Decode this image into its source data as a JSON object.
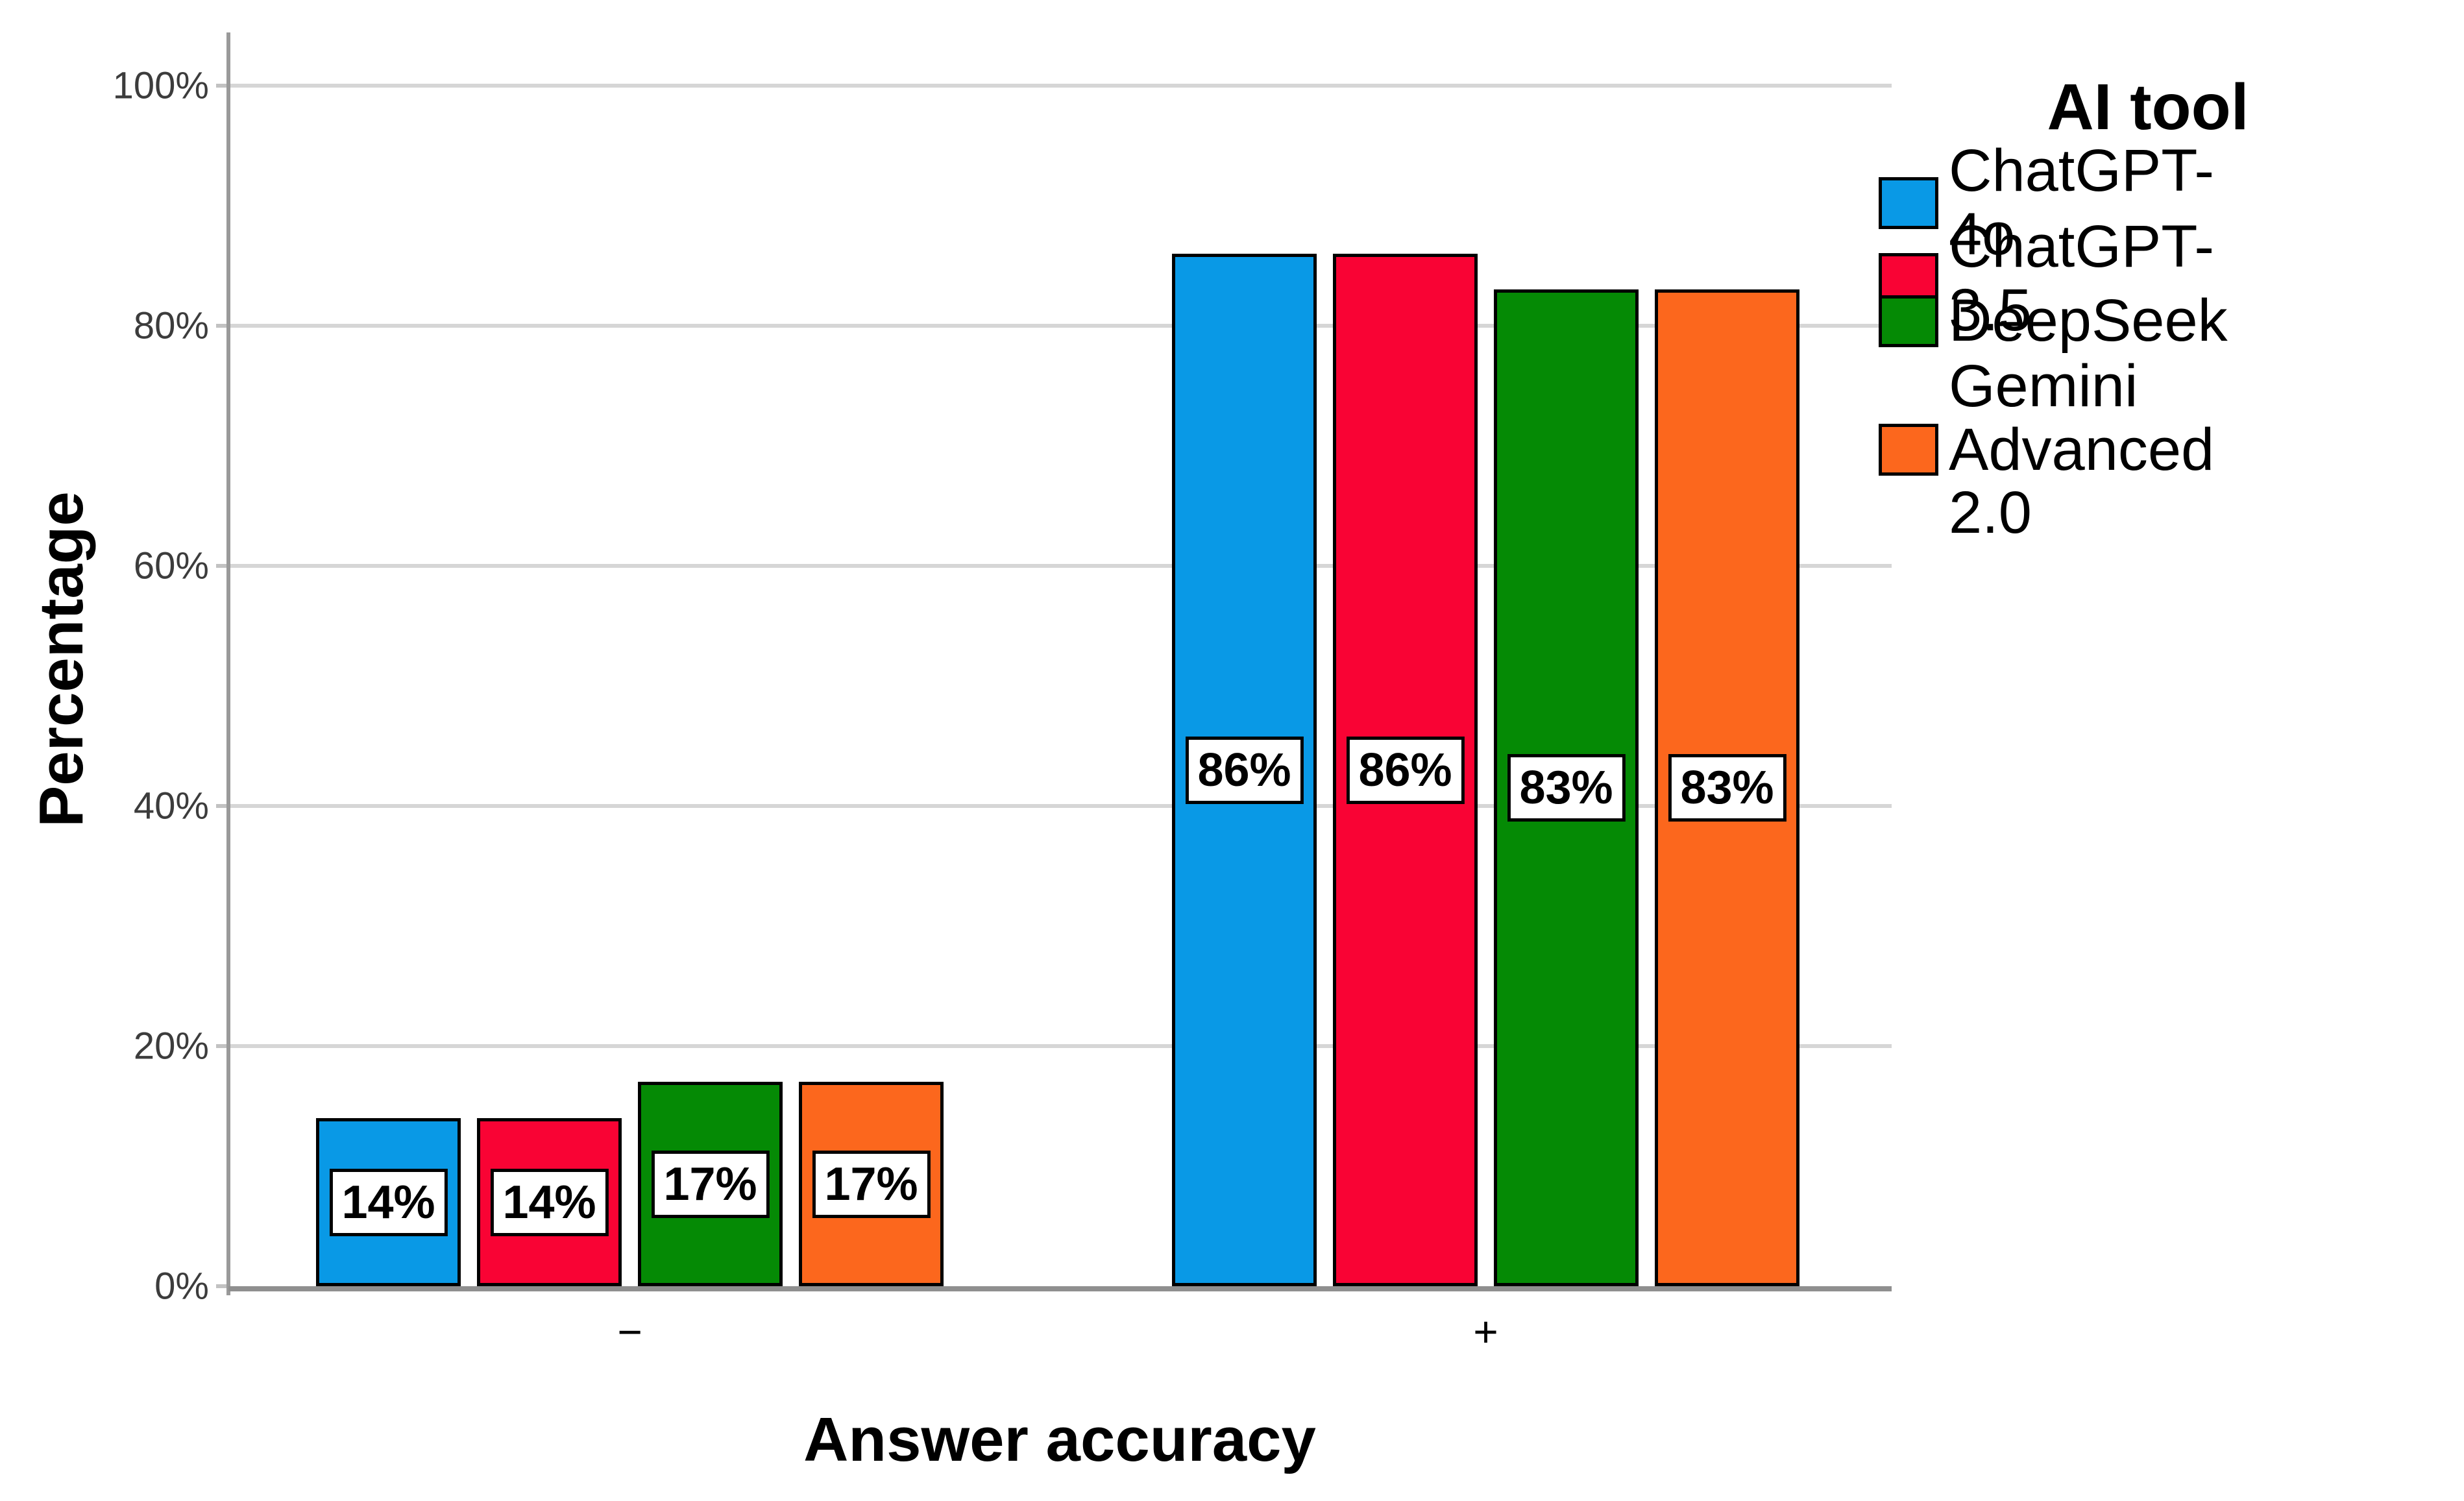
{
  "chart_data": {
    "type": "bar",
    "title": "",
    "xlabel": "Answer accuracy",
    "ylabel": "Percentage",
    "categories": [
      "−",
      "+"
    ],
    "series": [
      {
        "name": "ChatGPT-4o",
        "color": "#0999e6",
        "values": [
          14,
          86
        ]
      },
      {
        "name": "ChatGPT-3.5",
        "color": "#f90334",
        "values": [
          14,
          86
        ]
      },
      {
        "name": "DeepSeek",
        "color": "#058a05",
        "values": [
          17,
          83
        ]
      },
      {
        "name": "Gemini Advanced 2.0",
        "color": "#fc671d",
        "values": [
          17,
          83
        ]
      }
    ],
    "value_label_suffix": "%",
    "y_ticks": [
      "0%",
      "20%",
      "40%",
      "60%",
      "80%",
      "100%"
    ],
    "ylim": [
      0,
      100
    ],
    "grid": "horizontal",
    "legend_title": "AI tool",
    "legend_position": "top-right",
    "colors": {
      "background": "#ffffff",
      "gridline": "#d6d6d6",
      "axis_line": "#8f8f8f",
      "tick_text": "#3c3c3c",
      "bar_border": "#000000",
      "label_box_bg": "#ffffff",
      "label_box_border": "#000000"
    }
  }
}
